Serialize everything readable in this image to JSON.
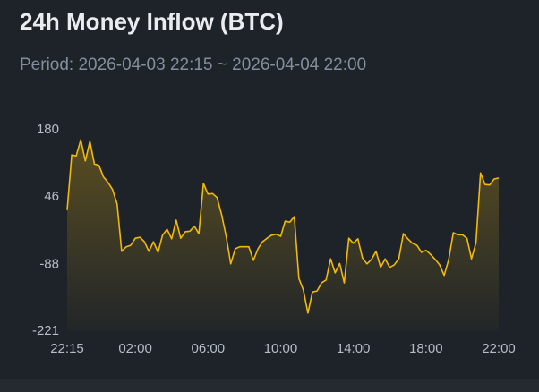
{
  "chart_data": {
    "type": "line",
    "title": "24h Money Inflow (BTC)",
    "subtitle": "Period: 2026-04-03 22:15 ~ 2026-04-04 22:00",
    "categories": [
      "22:15",
      null,
      null,
      null,
      null,
      null,
      null,
      null,
      null,
      null,
      null,
      null,
      null,
      null,
      null,
      "02:00",
      null,
      null,
      null,
      null,
      null,
      null,
      null,
      null,
      null,
      null,
      null,
      null,
      null,
      null,
      null,
      "06:00",
      null,
      null,
      null,
      null,
      null,
      null,
      null,
      null,
      null,
      null,
      null,
      null,
      null,
      null,
      null,
      "10:00",
      null,
      null,
      null,
      null,
      null,
      null,
      null,
      null,
      null,
      null,
      null,
      null,
      null,
      null,
      null,
      "14:00",
      null,
      null,
      null,
      null,
      null,
      null,
      null,
      null,
      null,
      null,
      null,
      null,
      null,
      null,
      null,
      "18:00",
      null,
      null,
      null,
      null,
      null,
      null,
      null,
      null,
      null,
      null,
      null,
      null,
      null,
      null,
      null,
      "22:00"
    ],
    "values": [
      20,
      130,
      128,
      160,
      118,
      157,
      112,
      109,
      86,
      75,
      61,
      32,
      -62,
      -53,
      -50,
      -36,
      -34,
      -43,
      -62,
      -43,
      -64,
      -30,
      -18,
      -37,
      0,
      -36,
      -23,
      -22,
      -12,
      -27,
      73,
      52,
      53,
      45,
      11,
      -32,
      -87,
      -57,
      -53,
      -53,
      -53,
      -80,
      -57,
      -43,
      -36,
      -30,
      -28,
      -32,
      -2,
      -4,
      7,
      -116,
      -139,
      -185,
      -143,
      -141,
      -125,
      -119,
      -77,
      -105,
      -86,
      -125,
      -36,
      -46,
      -37,
      -75,
      -87,
      -78,
      -62,
      -94,
      -77,
      -94,
      -89,
      -77,
      -27,
      -37,
      -46,
      -50,
      -64,
      -60,
      -68,
      -78,
      -89,
      -110,
      -78,
      -25,
      -29,
      -29,
      -36,
      -77,
      -45,
      94,
      71,
      70,
      82,
      84
    ],
    "color": "#f0b90b",
    "ylim": [
      -221,
      180
    ],
    "yticks": [
      -221,
      -88,
      46,
      180
    ],
    "grid": false
  }
}
